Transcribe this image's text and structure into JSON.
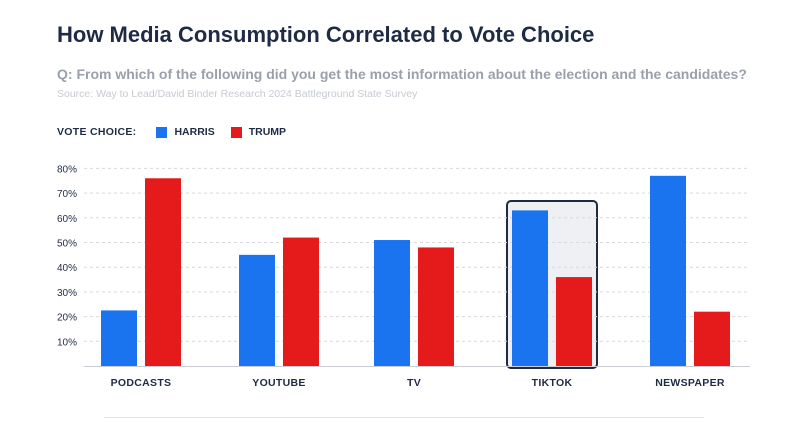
{
  "header": {
    "title": "How Media Consumption Correlated to Vote Choice",
    "question": "Q: From which of the following did you get the most information about the election and the candidates?",
    "source": "Source: Way to Lead/David Binder Research 2024 Battleground State Survey"
  },
  "legend": {
    "title": "VOTE CHOICE:",
    "items": [
      "HARRIS",
      "TRUMP"
    ]
  },
  "colors": {
    "harris": "#1a74f0",
    "trump": "#e51b1b",
    "highlight_fill": "#eef0f4",
    "highlight_border": "#1f2a44",
    "grid": "#d6d9de"
  },
  "chart_data": {
    "type": "bar",
    "categories": [
      "PODCASTS",
      "YOUTUBE",
      "TV",
      "TIKTOK",
      "NEWSPAPER"
    ],
    "series": [
      {
        "name": "HARRIS",
        "values": [
          22.5,
          45,
          51,
          63,
          77
        ]
      },
      {
        "name": "TRUMP",
        "values": [
          76,
          52,
          48,
          36,
          22
        ]
      }
    ],
    "yticks": [
      "10%",
      "20%",
      "30%",
      "40%",
      "50%",
      "60%",
      "70%",
      "80%"
    ],
    "ylim": [
      0,
      80
    ],
    "grid": true,
    "legend_position": "top-left",
    "highlighted_category": "TIKTOK"
  }
}
